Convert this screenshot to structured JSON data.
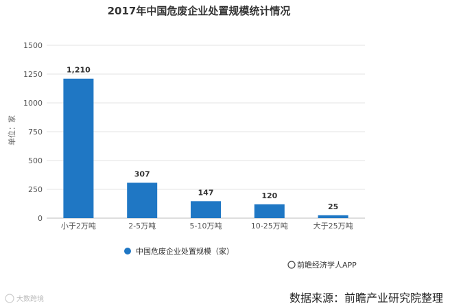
{
  "chart_data": {
    "type": "bar",
    "title": "2017年中国危废企业处置规模统计情况",
    "ylabel": "单位：家",
    "xlabel": "",
    "categories": [
      "小于2万吨",
      "2-5万吨",
      "5-10万吨",
      "10-25万吨",
      "大于25万吨"
    ],
    "series": [
      {
        "name": "中国危废企业处置规模（家）",
        "values": [
          1210,
          307,
          147,
          120,
          25
        ]
      }
    ],
    "data_labels": [
      "1,210",
      "307",
      "147",
      "120",
      "25"
    ],
    "ylim": [
      0,
      1500
    ],
    "yticks": [
      "0",
      "250",
      "500",
      "750",
      "1000",
      "1250",
      "1500"
    ],
    "grid": true,
    "legend_position": "bottom"
  },
  "colors": {
    "bar": "#1f77c4",
    "grid": "#e3e3e3",
    "axis": "#bbbbbb"
  },
  "credit": "前瞻经济学人APP",
  "source": "数据来源：前瞻产业研究院整理",
  "watermark": "大数跨境"
}
